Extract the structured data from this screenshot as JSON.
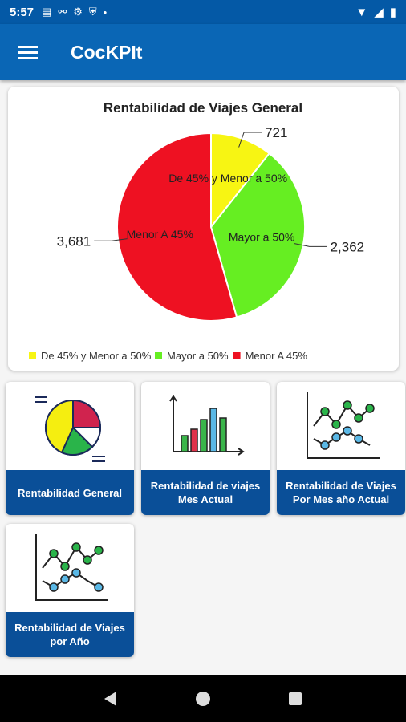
{
  "status_bar": {
    "time": "5:57"
  },
  "app_bar": {
    "title": "CocKPIt"
  },
  "chart_data": {
    "type": "pie",
    "title": "Rentabilidad de Viajes General",
    "slices": [
      {
        "label": "De 45% y Menor a 50%",
        "value": 721,
        "value_label": "721",
        "color": "#f7f513"
      },
      {
        "label": "Mayor a 50%",
        "value": 2362,
        "value_label": "2,362",
        "color": "#66ee22"
      },
      {
        "label": "Menor A 45%",
        "value": 3681,
        "value_label": "3,681",
        "color": "#ee1122"
      }
    ],
    "legend_position": "bottom-left"
  },
  "tiles": [
    {
      "label": "Rentabilidad General",
      "icon": "pie-chart-icon"
    },
    {
      "label": "Rentabilidad de viajes Mes Actual",
      "icon": "bar-chart-icon"
    },
    {
      "label": "Rentabilidad de Viajes Por Mes año Actual",
      "icon": "line-chart-icon"
    },
    {
      "label": "Rentabilidad de Viajes por Año",
      "icon": "line-chart-icon"
    }
  ]
}
